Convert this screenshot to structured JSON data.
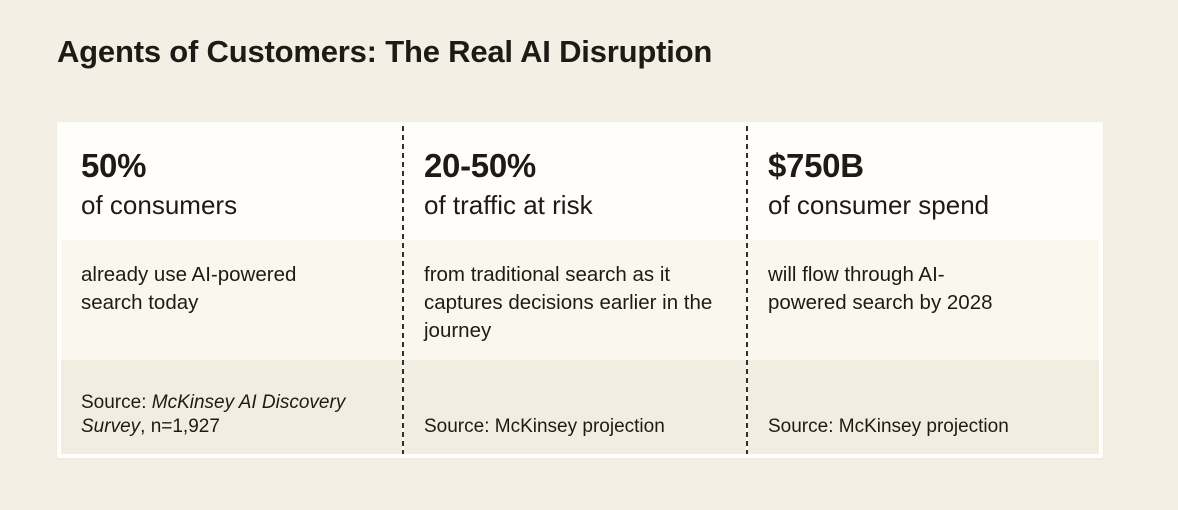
{
  "title": "Agents of Customers: The Real AI Disruption",
  "colors": {
    "page_bg": "#f4efe5",
    "card_bg": "#fffefa",
    "stat_row_bg": "#fffefa",
    "desc_row_bg": "#faf7ef",
    "source_row_bg": "#f2ede1",
    "divider": "#312f2a",
    "text": "#1d1b16"
  },
  "columns": [
    {
      "stat_value": "50%",
      "stat_label": "of consumers",
      "description": "already use AI-powered search today",
      "source_prefix": "Source: ",
      "source_emphasis": "McKinsey AI Discovery Survey",
      "source_suffix": ", n=1,927"
    },
    {
      "stat_value": "20-50%",
      "stat_label": "of traffic at risk",
      "description": "from traditional search as it captures decisions earlier in the journey",
      "source_prefix": "Source: McKinsey projection",
      "source_emphasis": "",
      "source_suffix": ""
    },
    {
      "stat_value": "$750B",
      "stat_label": "of consumer spend",
      "description": "will flow through AI-powered search by 2028",
      "source_prefix": "Source: McKinsey projection",
      "source_emphasis": "",
      "source_suffix": ""
    }
  ]
}
